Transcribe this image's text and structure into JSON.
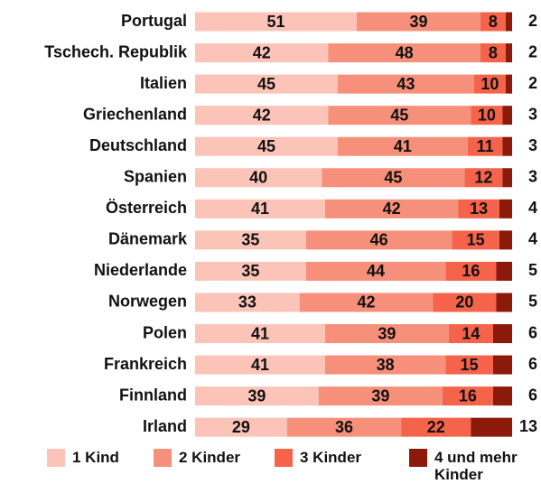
{
  "chart_data": {
    "type": "stacked-bar",
    "categories": [
      "Portugal",
      "Tschech. Republik",
      "Italien",
      "Griechenland",
      "Deutschland",
      "Spanien",
      "Österreich",
      "Dänemark",
      "Niederlande",
      "Norwegen",
      "Polen",
      "Frankreich",
      "Finnland",
      "Irland"
    ],
    "series": [
      {
        "name": "1 Kind",
        "color": "#fcc4b8",
        "values": [
          51,
          42,
          45,
          42,
          45,
          40,
          41,
          35,
          35,
          33,
          41,
          41,
          39,
          29
        ]
      },
      {
        "name": "2 Kinder",
        "color": "#f6907a",
        "values": [
          39,
          48,
          43,
          45,
          41,
          45,
          42,
          46,
          44,
          42,
          39,
          38,
          39,
          36
        ]
      },
      {
        "name": "3 Kinder",
        "color": "#f4634a",
        "values": [
          8,
          8,
          10,
          10,
          11,
          12,
          13,
          15,
          16,
          20,
          14,
          15,
          16,
          22
        ]
      },
      {
        "name": "4 und mehr Kinder",
        "color": "#8b1a0a",
        "values": [
          2,
          2,
          2,
          3,
          3,
          3,
          4,
          4,
          5,
          5,
          6,
          6,
          6,
          13
        ]
      }
    ],
    "xlim": [
      0,
      100
    ]
  }
}
